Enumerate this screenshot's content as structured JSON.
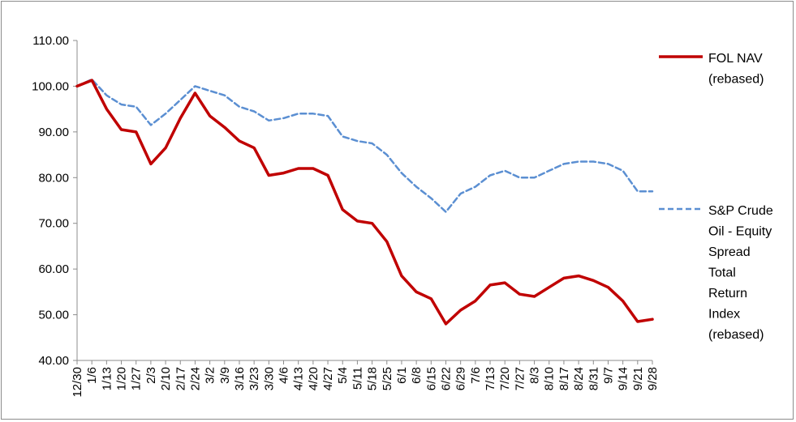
{
  "chart_data": {
    "type": "line",
    "title": "",
    "xlabel": "",
    "ylabel": "",
    "ylim": [
      40,
      110
    ],
    "yticks": [
      "40.00",
      "50.00",
      "60.00",
      "70.00",
      "80.00",
      "90.00",
      "100.00",
      "110.00"
    ],
    "grid": false,
    "legend_position": "right",
    "categories": [
      "12/30",
      "1/6",
      "1/13",
      "1/20",
      "1/27",
      "2/3",
      "2/10",
      "2/17",
      "2/24",
      "3/2",
      "3/9",
      "3/16",
      "3/23",
      "3/30",
      "4/6",
      "4/13",
      "4/20",
      "4/27",
      "5/4",
      "5/11",
      "5/18",
      "5/25",
      "6/1",
      "6/8",
      "6/15",
      "6/22",
      "6/29",
      "7/6",
      "7/13",
      "7/20",
      "7/27",
      "8/3",
      "8/10",
      "8/17",
      "8/24",
      "8/31",
      "9/7",
      "9/14",
      "9/21",
      "9/28"
    ],
    "series": [
      {
        "name": "FOL NAV (rebased)",
        "legend_lines": [
          "FOL NAV",
          "(rebased)"
        ],
        "color": "#c00000",
        "style": "solid",
        "values": [
          100.0,
          101.3,
          95.0,
          90.5,
          90.0,
          83.0,
          86.5,
          93.0,
          98.5,
          93.5,
          91.0,
          88.0,
          86.5,
          80.5,
          81.0,
          82.0,
          82.0,
          80.5,
          73.0,
          70.5,
          70.0,
          66.0,
          58.5,
          55.0,
          53.5,
          48.0,
          51.0,
          53.0,
          56.5,
          57.0,
          54.5,
          54.0,
          56.0,
          58.0,
          58.5,
          57.5,
          56.0,
          53.0,
          48.5,
          49.0
        ]
      },
      {
        "name": "S&P Crude Oil - Equity Spread Total Return Index (rebased)",
        "legend_lines": [
          "S&P Crude",
          "Oil - Equity",
          "Spread",
          "Total",
          "Return",
          "Index",
          "(rebased)"
        ],
        "color": "#5b8fd2",
        "style": "dashed",
        "values": [
          100.0,
          101.5,
          98.0,
          96.0,
          95.5,
          91.5,
          94.0,
          97.0,
          100.0,
          99.0,
          98.0,
          95.5,
          94.5,
          92.5,
          93.0,
          94.0,
          94.0,
          93.5,
          89.0,
          88.0,
          87.5,
          85.0,
          81.0,
          78.0,
          75.5,
          72.5,
          76.5,
          78.0,
          80.5,
          81.5,
          80.0,
          80.0,
          81.5,
          83.0,
          83.5,
          83.5,
          83.0,
          81.5,
          77.0,
          77.0
        ]
      }
    ]
  }
}
